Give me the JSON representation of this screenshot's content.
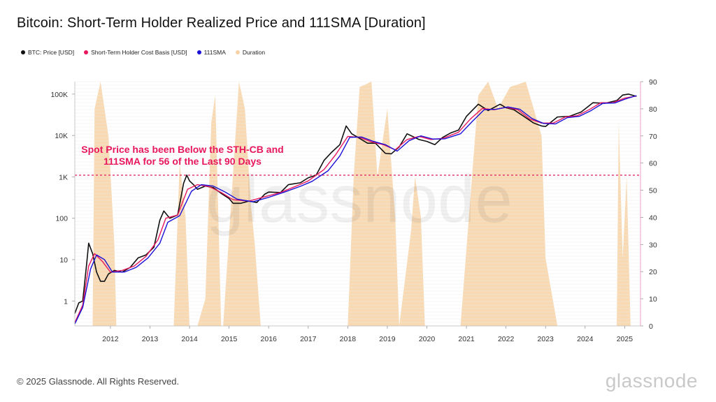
{
  "header": {
    "title": "Bitcoin: Short-Term Holder Realized Price and 111SMA [Duration]"
  },
  "legend": [
    {
      "label": "BTC: Price [USD]",
      "color": "#111111"
    },
    {
      "label": "Short-Term Holder Cost Basis [USD]",
      "color": "#e8175d"
    },
    {
      "label": "111SMA",
      "color": "#1b10d6"
    },
    {
      "label": "Duration",
      "color": "#f7d2a5"
    }
  ],
  "annotation": {
    "line1": "Spot Price has been Below the STH-CB and",
    "line2": "111SMA for 56 of the Last 90 Days",
    "threshold_value": 56,
    "color": "#e8175d"
  },
  "watermark": "glassnode",
  "footer": {
    "copyright": "© 2025 Glassnode. All Rights Reserved.",
    "logo": "glassnode"
  },
  "chart_data": {
    "type": "line",
    "x_ticks": [
      "2012",
      "2013",
      "2014",
      "2015",
      "2016",
      "2017",
      "2018",
      "2019",
      "2020",
      "2021",
      "2022",
      "2023",
      "2024",
      "2025"
    ],
    "xlim": [
      2011.1,
      2025.4
    ],
    "y_left": {
      "scale": "log",
      "ticks": [
        "1",
        "10",
        "100",
        "1K",
        "10K",
        "100K"
      ],
      "tick_values": [
        1,
        10,
        100,
        1000,
        10000,
        100000
      ],
      "range": [
        0.25,
        200000
      ]
    },
    "y_right": {
      "ticks": [
        "0",
        "10",
        "20",
        "30",
        "40",
        "50",
        "60",
        "70",
        "80",
        "90"
      ],
      "range": [
        0,
        90
      ]
    },
    "series": [
      {
        "name": "BTC: Price [USD]",
        "color": "#111111",
        "axis": "left",
        "x": [
          2011.1,
          2011.2,
          2011.3,
          2011.4,
          2011.45,
          2011.55,
          2011.65,
          2011.75,
          2011.85,
          2011.95,
          2012.1,
          2012.3,
          2012.5,
          2012.7,
          2012.9,
          2013.1,
          2013.25,
          2013.35,
          2013.5,
          2013.7,
          2013.85,
          2013.93,
          2014.0,
          2014.1,
          2014.2,
          2014.4,
          2014.6,
          2014.8,
          2015.0,
          2015.1,
          2015.3,
          2015.5,
          2015.7,
          2015.9,
          2016.0,
          2016.3,
          2016.5,
          2016.8,
          2017.0,
          2017.2,
          2017.4,
          2017.6,
          2017.8,
          2017.96,
          2018.1,
          2018.3,
          2018.5,
          2018.7,
          2018.95,
          2019.1,
          2019.3,
          2019.5,
          2019.8,
          2020.0,
          2020.2,
          2020.4,
          2020.6,
          2020.8,
          2021.0,
          2021.3,
          2021.55,
          2021.85,
          2022.0,
          2022.2,
          2022.45,
          2022.7,
          2022.9,
          2023.0,
          2023.3,
          2023.6,
          2023.9,
          2024.2,
          2024.5,
          2024.8,
          2024.95,
          2025.1,
          2025.3
        ],
        "values": [
          0.5,
          0.9,
          1.0,
          8,
          25,
          14,
          5,
          3,
          3,
          4.5,
          5.5,
          5,
          6.5,
          11,
          13,
          20,
          90,
          150,
          100,
          120,
          700,
          1100,
          800,
          650,
          500,
          600,
          550,
          400,
          300,
          230,
          230,
          260,
          240,
          380,
          430,
          420,
          650,
          720,
          950,
          1100,
          2500,
          4000,
          6000,
          17000,
          11000,
          8500,
          6500,
          6500,
          3700,
          3600,
          5300,
          11000,
          8000,
          7200,
          6000,
          9000,
          11500,
          13500,
          29000,
          57000,
          40000,
          57000,
          47000,
          42000,
          29000,
          20000,
          17000,
          16500,
          28000,
          29000,
          37000,
          62000,
          60000,
          70000,
          95000,
          100000,
          88000
        ]
      },
      {
        "name": "Short-Term Holder Cost Basis [USD]",
        "color": "#e8175d",
        "axis": "left",
        "x": [
          2011.1,
          2011.3,
          2011.45,
          2011.6,
          2011.8,
          2012.0,
          2012.3,
          2012.6,
          2012.9,
          2013.2,
          2013.4,
          2013.7,
          2013.95,
          2014.2,
          2014.5,
          2014.8,
          2015.1,
          2015.5,
          2015.9,
          2016.3,
          2016.7,
          2017.0,
          2017.4,
          2017.7,
          2018.0,
          2018.3,
          2018.6,
          2018.9,
          2019.2,
          2019.5,
          2019.8,
          2020.1,
          2020.4,
          2020.8,
          2021.1,
          2021.4,
          2021.7,
          2022.0,
          2022.3,
          2022.6,
          2022.9,
          2023.2,
          2023.5,
          2023.8,
          2024.1,
          2024.4,
          2024.7,
          2025.0,
          2025.3
        ],
        "values": [
          0.3,
          0.8,
          7,
          14,
          9,
          5,
          5.5,
          7,
          12,
          30,
          100,
          120,
          500,
          650,
          580,
          420,
          280,
          260,
          330,
          420,
          600,
          800,
          1500,
          3500,
          9500,
          9000,
          7000,
          6000,
          4500,
          8000,
          9500,
          8000,
          8500,
          12000,
          25000,
          45000,
          42000,
          48000,
          42000,
          25000,
          20000,
          20000,
          28000,
          30000,
          42000,
          62000,
          62000,
          80000,
          90000
        ]
      },
      {
        "name": "111SMA",
        "color": "#1b10d6",
        "axis": "left",
        "x": [
          2011.1,
          2011.3,
          2011.5,
          2011.65,
          2011.85,
          2012.05,
          2012.35,
          2012.65,
          2012.95,
          2013.25,
          2013.45,
          2013.75,
          2014.05,
          2014.3,
          2014.6,
          2014.9,
          2015.2,
          2015.6,
          2016.0,
          2016.4,
          2016.8,
          2017.1,
          2017.5,
          2017.8,
          2018.05,
          2018.35,
          2018.65,
          2018.95,
          2019.25,
          2019.55,
          2019.85,
          2020.15,
          2020.45,
          2020.85,
          2021.15,
          2021.45,
          2021.75,
          2022.05,
          2022.35,
          2022.65,
          2022.95,
          2023.25,
          2023.55,
          2023.85,
          2024.15,
          2024.45,
          2024.75,
          2025.05,
          2025.3
        ],
        "values": [
          0.28,
          0.7,
          6,
          13,
          10,
          5,
          5,
          6.5,
          11,
          25,
          80,
          115,
          450,
          650,
          600,
          430,
          290,
          250,
          320,
          430,
          590,
          780,
          1400,
          3200,
          9000,
          9200,
          7200,
          6000,
          4200,
          7500,
          9800,
          8200,
          8300,
          11000,
          22000,
          42000,
          43000,
          49000,
          43000,
          26000,
          19500,
          19000,
          27000,
          29000,
          40000,
          60000,
          61000,
          78000,
          92000
        ]
      },
      {
        "name": "Duration",
        "color": "#f7d2a5",
        "axis": "right",
        "x": [
          2011.1,
          2011.3,
          2011.55,
          2011.6,
          2011.75,
          2011.95,
          2012.1,
          2012.15,
          2012.35,
          2012.5,
          2012.7,
          2012.85,
          2013.0,
          2013.4,
          2013.45,
          2013.6,
          2013.75,
          2013.9,
          2014.0,
          2014.2,
          2014.4,
          2014.55,
          2014.65,
          2014.8,
          2014.85,
          2015.25,
          2015.4,
          2015.55,
          2015.65,
          2015.8,
          2015.9,
          2016.1,
          2016.25,
          2016.4,
          2016.6,
          2016.8,
          2017.2,
          2017.35,
          2017.6,
          2017.7,
          2018.0,
          2018.15,
          2018.3,
          2018.6,
          2018.75,
          2019.0,
          2019.2,
          2019.3,
          2019.6,
          2019.7,
          2019.85,
          2019.95,
          2020.2,
          2020.3,
          2020.4,
          2020.7,
          2020.85,
          2021.3,
          2021.55,
          2021.8,
          2022.1,
          2022.5,
          2022.9,
          2023.0,
          2023.3,
          2023.45,
          2023.6,
          2023.7,
          2023.8,
          2024.1,
          2024.25,
          2024.6,
          2024.7,
          2024.8,
          2024.85,
          2024.95,
          2025.05,
          2025.15,
          2025.3
        ],
        "values": [
          0,
          0,
          0,
          80,
          90,
          70,
          30,
          0,
          0,
          0,
          0,
          0,
          0,
          0,
          0,
          0,
          60,
          40,
          0,
          0,
          10,
          75,
          85,
          0,
          0,
          90,
          80,
          45,
          30,
          0,
          0,
          0,
          0,
          0,
          0,
          0,
          0,
          0,
          0,
          0,
          0,
          55,
          88,
          90,
          55,
          80,
          40,
          0,
          35,
          55,
          40,
          0,
          0,
          0,
          0,
          0,
          0,
          85,
          90,
          80,
          88,
          90,
          70,
          25,
          0,
          0,
          0,
          0,
          0,
          0,
          0,
          0,
          0,
          0,
          75,
          25,
          55,
          0,
          0
        ]
      }
    ],
    "threshold_line": {
      "axis": "left",
      "value": 1100,
      "color": "#e8175d",
      "style": "dashed"
    }
  }
}
